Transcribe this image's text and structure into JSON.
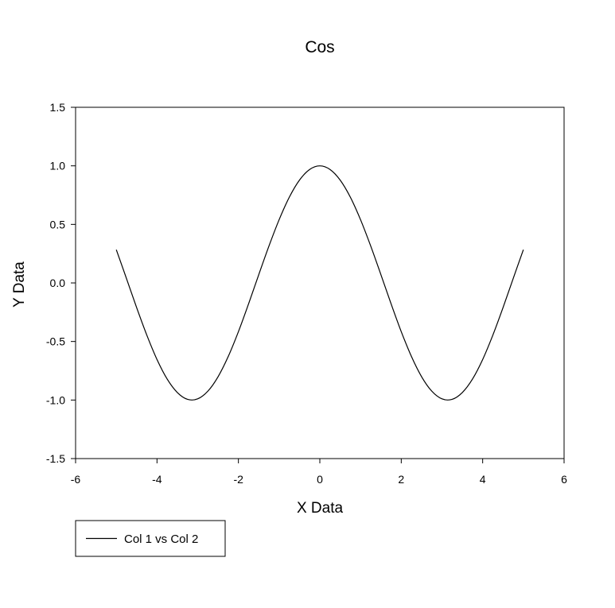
{
  "chart_data": {
    "type": "line",
    "title": "Cos",
    "xlabel": "X Data",
    "ylabel": "Y Data",
    "xlim": [
      -6,
      6
    ],
    "ylim": [
      -1.5,
      1.5
    ],
    "x_ticks": [
      -6,
      -4,
      -2,
      0,
      2,
      4,
      6
    ],
    "x_tick_labels": [
      "-6",
      "-4",
      "-2",
      "0",
      "2",
      "4",
      "6"
    ],
    "y_ticks": [
      -1.5,
      -1.0,
      -0.5,
      0.0,
      0.5,
      1.0,
      1.5
    ],
    "y_tick_labels": [
      "-1.5",
      "-1.0",
      "-0.5",
      "0.0",
      "0.5",
      "1.0",
      "1.5"
    ],
    "grid": false,
    "legend_position": "bottom-left",
    "series": [
      {
        "name": "Col 1 vs Col 2",
        "color": "#000000",
        "x": [
          -5.0,
          -4.75,
          -4.5,
          -4.25,
          -4.0,
          -3.75,
          -3.5,
          -3.25,
          -3.0,
          -2.75,
          -2.5,
          -2.25,
          -2.0,
          -1.75,
          -1.5,
          -1.25,
          -1.0,
          -0.75,
          -0.5,
          -0.25,
          0.0,
          0.25,
          0.5,
          0.75,
          1.0,
          1.25,
          1.5,
          1.75,
          2.0,
          2.25,
          2.5,
          2.75,
          3.0,
          3.25,
          3.5,
          3.75,
          4.0,
          4.25,
          4.5,
          4.75,
          5.0
        ],
        "y": [
          0.284,
          0.038,
          -0.211,
          -0.446,
          -0.654,
          -0.821,
          -0.936,
          -0.994,
          -0.99,
          -0.924,
          -0.801,
          -0.628,
          -0.416,
          -0.178,
          0.071,
          0.315,
          0.54,
          0.732,
          0.878,
          0.969,
          1.0,
          0.969,
          0.878,
          0.732,
          0.54,
          0.315,
          0.071,
          -0.178,
          -0.416,
          -0.628,
          -0.801,
          -0.924,
          -0.99,
          -0.994,
          -0.936,
          -0.821,
          -0.654,
          -0.446,
          -0.211,
          0.038,
          0.284
        ]
      }
    ]
  }
}
